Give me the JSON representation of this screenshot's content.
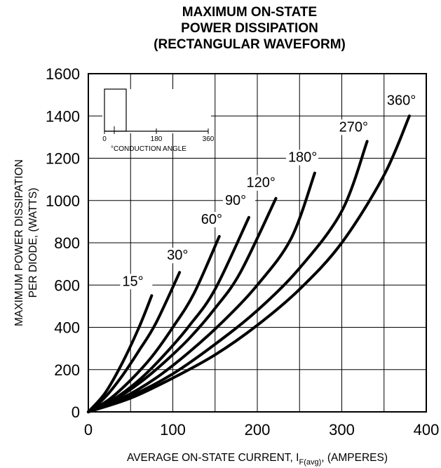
{
  "chart_data": {
    "type": "line",
    "title": [
      "MAXIMUM ON-STATE",
      "POWER DISSIPATION",
      "(RECTANGULAR WAVEFORM)"
    ],
    "ylabel": [
      "MAXIMUM POWER DISSIPATION",
      "PER DIODE,  (WATTS)"
    ],
    "xlabel": {
      "main": "AVERAGE ON-STATE CURRENT, I",
      "subscript": "F(avg)",
      "suffix": ", (AMPERES)"
    },
    "xlim": [
      0,
      400
    ],
    "ylim": [
      0,
      1600
    ],
    "xticks": [
      0,
      100,
      200,
      300,
      400
    ],
    "yticks": [
      0,
      200,
      400,
      600,
      800,
      1000,
      1200,
      1400,
      1600
    ],
    "grid": true,
    "series": [
      {
        "name": "15°",
        "x": [
          0,
          20,
          40,
          60,
          75
        ],
        "y": [
          0,
          90,
          230,
          400,
          550
        ]
      },
      {
        "name": "30°",
        "x": [
          0,
          20,
          40,
          60,
          80,
          108
        ],
        "y": [
          0,
          70,
          170,
          290,
          420,
          660
        ]
      },
      {
        "name": "60°",
        "x": [
          0,
          25,
          50,
          75,
          100,
          125,
          155
        ],
        "y": [
          0,
          60,
          150,
          260,
          400,
          560,
          830
        ]
      },
      {
        "name": "90°",
        "x": [
          0,
          30,
          60,
          90,
          120,
          150,
          190
        ],
        "y": [
          0,
          60,
          150,
          270,
          410,
          580,
          920
        ]
      },
      {
        "name": "120°",
        "x": [
          0,
          30,
          60,
          90,
          120,
          150,
          180,
          222
        ],
        "y": [
          0,
          55,
          135,
          235,
          350,
          490,
          660,
          1010
        ]
      },
      {
        "name": "180°",
        "x": [
          0,
          40,
          80,
          120,
          160,
          200,
          240,
          268
        ],
        "y": [
          0,
          65,
          160,
          285,
          430,
          600,
          820,
          1130
        ]
      },
      {
        "name": "270°",
        "x": [
          0,
          50,
          100,
          150,
          200,
          250,
          300,
          330
        ],
        "y": [
          0,
          75,
          180,
          320,
          480,
          680,
          950,
          1280
        ]
      },
      {
        "name": "360°",
        "x": [
          0,
          50,
          100,
          150,
          200,
          250,
          300,
          350,
          380
        ],
        "y": [
          0,
          65,
          160,
          270,
          410,
          580,
          800,
          1120,
          1400
        ]
      }
    ],
    "inset": {
      "ticks": [
        "0",
        "180",
        "360"
      ],
      "label": "°CONDUCTION ANGLE"
    }
  }
}
